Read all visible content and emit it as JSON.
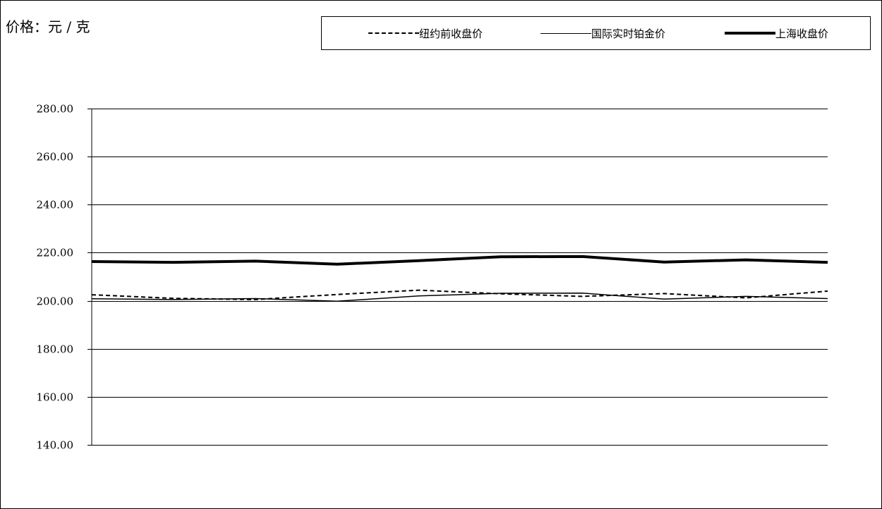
{
  "chart_data": {
    "type": "line",
    "ylabel": "价格：元 / 克",
    "ylim": [
      140,
      280
    ],
    "yticks": [
      "140.00",
      "160.00",
      "180.00",
      "200.00",
      "220.00",
      "240.00",
      "260.00",
      "280.00"
    ],
    "grid": "horizontal",
    "legend_position": "top",
    "point_count": 10,
    "series": [
      {
        "name": "纽约前收盘价",
        "style": "dashed",
        "values": [
          202.5,
          201.0,
          200.5,
          202.6,
          204.4,
          202.9,
          201.8,
          203.0,
          201.2,
          204.0
        ]
      },
      {
        "name": "国际实时铂金价",
        "style": "solid-thin",
        "values": [
          200.8,
          200.5,
          200.9,
          199.8,
          202.0,
          203.1,
          203.2,
          200.7,
          201.8,
          200.9
        ]
      },
      {
        "name": "上海收盘价",
        "style": "solid-thick",
        "values": [
          216.3,
          216.0,
          216.5,
          215.2,
          216.7,
          218.3,
          218.4,
          216.1,
          217.0,
          216.0
        ]
      }
    ]
  },
  "colors": {
    "line": "#000000",
    "background": "#ffffff"
  }
}
